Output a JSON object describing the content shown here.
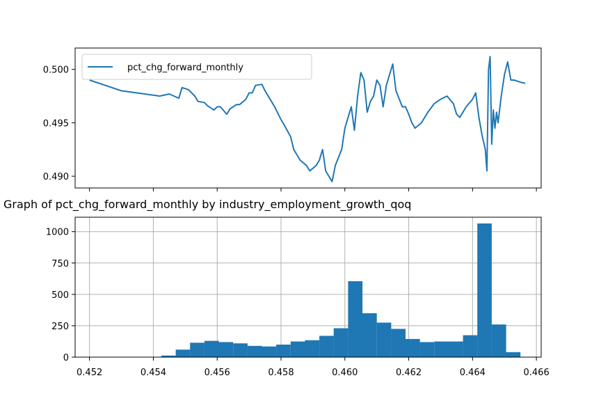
{
  "colors": {
    "series": "#1f77b4",
    "grid": "#b0b0b0",
    "axis": "#000000"
  },
  "chart_data": [
    {
      "type": "line",
      "title": "",
      "legend": {
        "placement": "top-left",
        "entries": [
          "pct_chg_forward_monthly"
        ]
      },
      "ylim": [
        0.4889,
        0.502
      ],
      "xlim": [
        0.45155,
        0.46615
      ],
      "yticks": [
        0.49,
        0.495,
        0.5
      ],
      "ytick_labels": [
        "0.490",
        "0.495",
        "0.500"
      ],
      "xticks": [
        0.452,
        0.454,
        0.456,
        0.458,
        0.46,
        0.462,
        0.464,
        0.466
      ],
      "grid": false,
      "series": [
        {
          "name": "pct_chg_forward_monthly",
          "x": [
            0.452,
            0.453,
            0.4542,
            0.4545,
            0.4548,
            0.4549,
            0.4551,
            0.4553,
            0.4554,
            0.4556,
            0.4557,
            0.4559,
            0.456,
            0.4561,
            0.4563,
            0.4564,
            0.4566,
            0.4567,
            0.4569,
            0.457,
            0.4571,
            0.4572,
            0.4574,
            0.4575,
            0.4577,
            0.4578,
            0.458,
            0.4581,
            0.4583,
            0.4584,
            0.4585,
            0.4586,
            0.4588,
            0.4589,
            0.4591,
            0.4592,
            0.4593,
            0.4594,
            0.4596,
            0.4597,
            0.4599,
            0.46,
            0.4601,
            0.4602,
            0.4603,
            0.4604,
            0.4605,
            0.4606,
            0.4607,
            0.4608,
            0.4609,
            0.461,
            0.4611,
            0.4612,
            0.4613,
            0.4615,
            0.4616,
            0.4618,
            0.4619,
            0.462,
            0.4621,
            0.4622,
            0.4624,
            0.4626,
            0.4628,
            0.463,
            0.4632,
            0.4634,
            0.4635,
            0.4636,
            0.4638,
            0.464,
            0.4641,
            0.4642,
            0.4643,
            0.4644,
            0.46445,
            0.4645,
            0.46455,
            0.4646,
            0.46465,
            0.4647,
            0.46475,
            0.4648,
            0.4649,
            0.465,
            0.4651,
            0.4652,
            0.4653,
            0.4655,
            0.46565
          ],
          "y": [
            0.499,
            0.498,
            0.4975,
            0.4977,
            0.4973,
            0.4983,
            0.4981,
            0.4975,
            0.497,
            0.4969,
            0.4966,
            0.4962,
            0.4965,
            0.4965,
            0.4958,
            0.4963,
            0.4967,
            0.4967,
            0.4972,
            0.4978,
            0.4978,
            0.4985,
            0.4986,
            0.498,
            0.497,
            0.4965,
            0.4953,
            0.4948,
            0.4937,
            0.4925,
            0.492,
            0.4915,
            0.491,
            0.4905,
            0.491,
            0.4915,
            0.4925,
            0.4905,
            0.4895,
            0.491,
            0.4925,
            0.4945,
            0.4955,
            0.4965,
            0.4943,
            0.4975,
            0.4997,
            0.499,
            0.496,
            0.497,
            0.4975,
            0.499,
            0.4985,
            0.4965,
            0.4985,
            0.5005,
            0.498,
            0.4965,
            0.4965,
            0.4958,
            0.495,
            0.4945,
            0.495,
            0.496,
            0.4968,
            0.4972,
            0.4975,
            0.4968,
            0.4958,
            0.4955,
            0.4965,
            0.4972,
            0.4978,
            0.4955,
            0.4938,
            0.4925,
            0.4905,
            0.5,
            0.5012,
            0.493,
            0.4962,
            0.4945,
            0.496,
            0.495,
            0.4975,
            0.4995,
            0.5007,
            0.499,
            0.499,
            0.4988,
            0.4987
          ]
        }
      ]
    },
    {
      "type": "bar",
      "title": "Graph of pct_chg_forward_monthly by industry_employment_growth_qoq",
      "xlim": [
        0.45155,
        0.46615
      ],
      "ylim": [
        0,
        1115
      ],
      "xticks": [
        0.452,
        0.454,
        0.456,
        0.458,
        0.46,
        0.462,
        0.464,
        0.466
      ],
      "xtick_labels": [
        "0.452",
        "0.454",
        "0.456",
        "0.458",
        "0.460",
        "0.462",
        "0.464",
        "0.466"
      ],
      "yticks": [
        0,
        250,
        500,
        750,
        1000
      ],
      "ytick_labels": [
        "0",
        "250",
        "500",
        "750",
        "1000"
      ],
      "grid": true,
      "bin_edges": [
        0.452,
        0.45245,
        0.4529,
        0.45335,
        0.4538,
        0.45425,
        0.4547,
        0.45515,
        0.4556,
        0.45605,
        0.4565,
        0.45695,
        0.4574,
        0.45785,
        0.4583,
        0.45875,
        0.4592,
        0.45965,
        0.4601,
        0.46055,
        0.461,
        0.46145,
        0.4619,
        0.46235,
        0.4628,
        0.46325,
        0.4637,
        0.46415,
        0.4646,
        0.46505,
        0.4655,
        0.46595
      ],
      "values": [
        0,
        0,
        0,
        0,
        0,
        13,
        60,
        115,
        130,
        120,
        110,
        90,
        85,
        100,
        125,
        135,
        170,
        230,
        605,
        350,
        275,
        225,
        145,
        120,
        125,
        125,
        175,
        1065,
        260,
        40,
        0
      ]
    }
  ]
}
